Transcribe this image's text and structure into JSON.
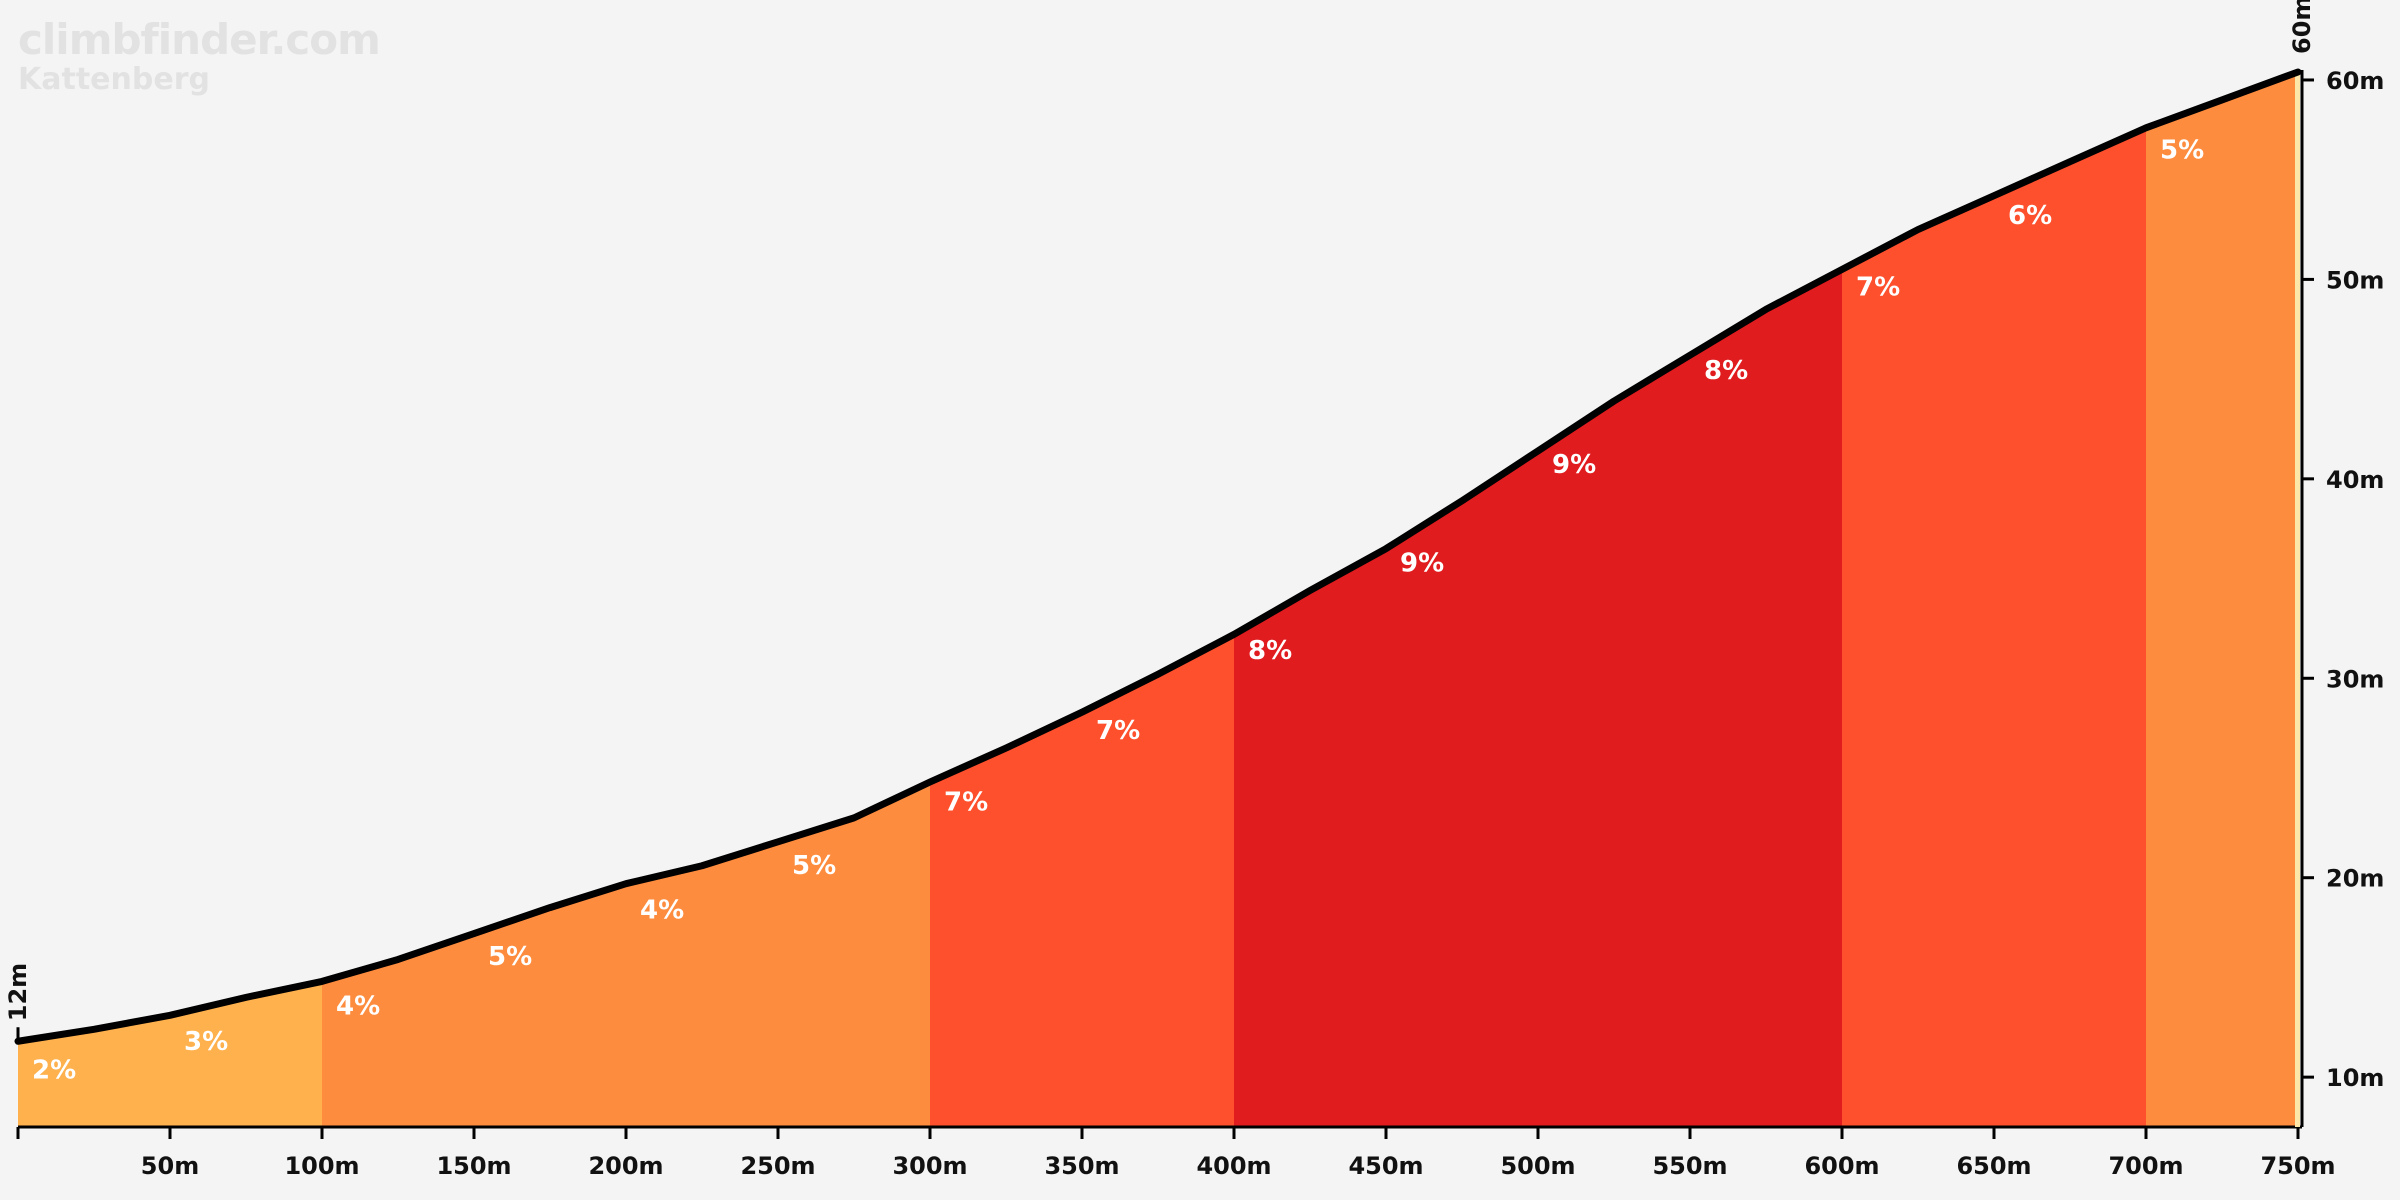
{
  "branding": {
    "site": "climbfinder.com",
    "climb_name": "Kattenberg"
  },
  "chart_data": {
    "type": "area",
    "title": "",
    "xlabel": "",
    "ylabel": "",
    "x_unit": "m",
    "y_unit": "m",
    "xlim": [
      0,
      750
    ],
    "ylim": [
      7.5,
      60.5
    ],
    "x_ticks": [
      50,
      100,
      150,
      200,
      250,
      300,
      350,
      400,
      450,
      500,
      550,
      600,
      650,
      700,
      750
    ],
    "y_ticks": [
      10,
      20,
      30,
      40,
      50,
      60
    ],
    "start_label": "12m",
    "end_label": "60m",
    "profile": [
      {
        "x": 0,
        "y": 11.8
      },
      {
        "x": 25,
        "y": 12.4
      },
      {
        "x": 50,
        "y": 13.1
      },
      {
        "x": 75,
        "y": 14.0
      },
      {
        "x": 100,
        "y": 14.8
      },
      {
        "x": 125,
        "y": 15.9
      },
      {
        "x": 150,
        "y": 17.2
      },
      {
        "x": 175,
        "y": 18.5
      },
      {
        "x": 200,
        "y": 19.7
      },
      {
        "x": 225,
        "y": 20.6
      },
      {
        "x": 250,
        "y": 21.8
      },
      {
        "x": 275,
        "y": 23.0
      },
      {
        "x": 300,
        "y": 24.8
      },
      {
        "x": 325,
        "y": 26.5
      },
      {
        "x": 350,
        "y": 28.3
      },
      {
        "x": 375,
        "y": 30.2
      },
      {
        "x": 400,
        "y": 32.2
      },
      {
        "x": 425,
        "y": 34.4
      },
      {
        "x": 450,
        "y": 36.5
      },
      {
        "x": 475,
        "y": 38.9
      },
      {
        "x": 500,
        "y": 41.4
      },
      {
        "x": 525,
        "y": 43.9
      },
      {
        "x": 550,
        "y": 46.2
      },
      {
        "x": 575,
        "y": 48.5
      },
      {
        "x": 600,
        "y": 50.5
      },
      {
        "x": 625,
        "y": 52.5
      },
      {
        "x": 650,
        "y": 54.2
      },
      {
        "x": 675,
        "y": 55.9
      },
      {
        "x": 700,
        "y": 57.6
      },
      {
        "x": 725,
        "y": 59.0
      },
      {
        "x": 750,
        "y": 60.4
      }
    ],
    "bands": [
      {
        "from": 0,
        "to": 100,
        "color": "#ffb14e"
      },
      {
        "from": 100,
        "to": 300,
        "color": "#fe8c3e"
      },
      {
        "from": 300,
        "to": 400,
        "color": "#fe502d"
      },
      {
        "from": 400,
        "to": 600,
        "color": "#e11c1e"
      },
      {
        "from": 600,
        "to": 700,
        "color": "#fe502d"
      },
      {
        "from": 700,
        "to": 750,
        "color": "#fe8c3e"
      }
    ],
    "gradient_labels": [
      {
        "x": 0,
        "text": "2%"
      },
      {
        "x": 50,
        "text": "3%"
      },
      {
        "x": 100,
        "text": "4%"
      },
      {
        "x": 150,
        "text": "5%"
      },
      {
        "x": 200,
        "text": "4%"
      },
      {
        "x": 250,
        "text": "5%"
      },
      {
        "x": 300,
        "text": "7%"
      },
      {
        "x": 350,
        "text": "7%"
      },
      {
        "x": 400,
        "text": "8%"
      },
      {
        "x": 450,
        "text": "9%"
      },
      {
        "x": 500,
        "text": "9%"
      },
      {
        "x": 550,
        "text": "8%"
      },
      {
        "x": 600,
        "text": "7%"
      },
      {
        "x": 650,
        "text": "6%"
      },
      {
        "x": 700,
        "text": "5%"
      }
    ],
    "colors": {
      "background": "#f4f4f4",
      "profile_line": "#000000",
      "axis": "#000000",
      "end_marker": "#fde7a8"
    }
  }
}
